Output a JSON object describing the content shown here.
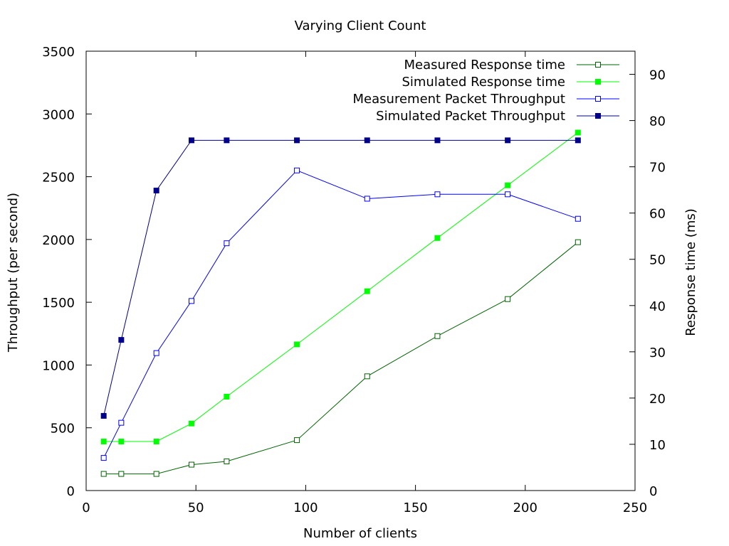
{
  "chart_data": {
    "type": "line",
    "title": "Varying Client Count",
    "xlabel": "Number of clients",
    "ylabel": "Throughput (per second)",
    "y2label": "Response time (ms)",
    "xlim": [
      0,
      250
    ],
    "ylim": [
      0,
      3500
    ],
    "y2lim": [
      0,
      95
    ],
    "x_ticks": [
      0,
      50,
      100,
      150,
      200,
      250
    ],
    "y_ticks": [
      0,
      500,
      1000,
      1500,
      2000,
      2500,
      3000,
      3500
    ],
    "y2_ticks": [
      0,
      10,
      20,
      30,
      40,
      50,
      60,
      70,
      80,
      90
    ],
    "grid": false,
    "legend_position": "top-right",
    "x": [
      8,
      16,
      32,
      48,
      64,
      96,
      128,
      160,
      192,
      224
    ],
    "series": [
      {
        "name": "Measured Response time",
        "axis": "y2",
        "color": "#006400",
        "marker": "open-square",
        "values": [
          3.6,
          3.6,
          3.6,
          5.6,
          6.3,
          10.9,
          24.7,
          33.4,
          41.4,
          53.7
        ]
      },
      {
        "name": "Simulated Response time",
        "axis": "y2",
        "color": "#00ff00",
        "marker": "filled-square",
        "values": [
          10.6,
          10.6,
          10.6,
          14.5,
          20.3,
          31.6,
          43.1,
          54.6,
          66.0,
          77.4
        ]
      },
      {
        "name": "Measurement Packet Throughput",
        "axis": "y",
        "color": "#0000ff",
        "marker": "open-square",
        "values": [
          260,
          540,
          1095,
          1510,
          1970,
          2550,
          2325,
          2360,
          2360,
          2165
        ]
      },
      {
        "name": "Simulated Packet Throughput",
        "axis": "y",
        "color": "#00008b",
        "marker": "filled-square",
        "values": [
          595,
          1200,
          2390,
          2790,
          2790,
          2790,
          2790,
          2790,
          2790,
          2790
        ]
      }
    ]
  }
}
